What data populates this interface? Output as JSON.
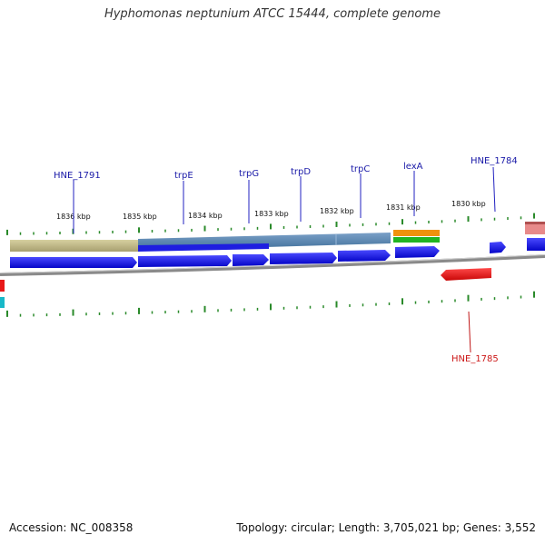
{
  "title": "Hyphomonas neptunium ATCC 15444, complete genome",
  "footer": {
    "accession": "Accession: NC_008358",
    "topology": "Topology: circular; Length: 3,705,021 bp; Genes: 3,552"
  },
  "colors": {
    "forward_cds": "#0a0ae8",
    "reverse_cds": "#ee1111",
    "forward_label": "#1a1aa8",
    "reverse_label": "#cc1a1a",
    "tick": "#2a8a2a",
    "backbone": "#888888"
  },
  "ruler_labels": [
    "1836 kbp",
    "1835 kbp",
    "1834 kbp",
    "1833 kbp",
    "1832 kbp",
    "1831 kbp",
    "1830 kbp"
  ],
  "gene_labels": {
    "forward": [
      "HNE_1791",
      "trpE",
      "trpG",
      "trpD",
      "trpC",
      "lexA",
      "HNE_1784"
    ],
    "reverse": [
      "HNE_1785"
    ]
  }
}
